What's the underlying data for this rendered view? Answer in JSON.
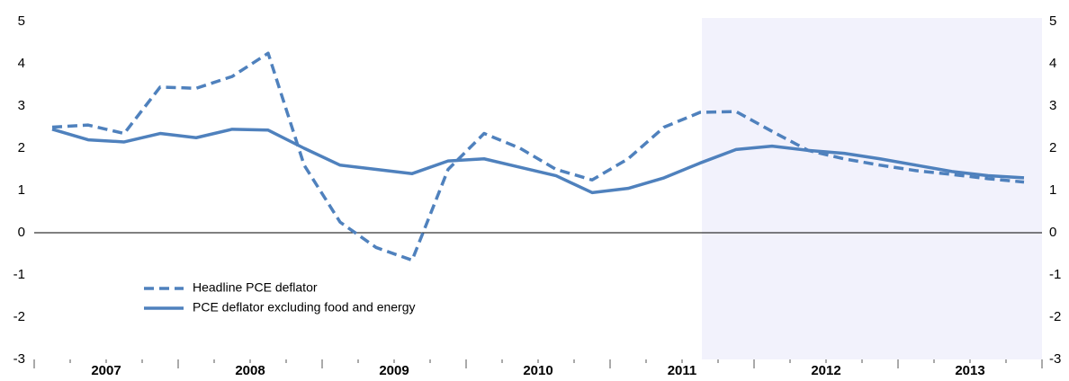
{
  "chart_data": {
    "type": "line",
    "categories": [
      null,
      null,
      null,
      null,
      null,
      null,
      null,
      null,
      null,
      null,
      null,
      null,
      null,
      null,
      null,
      null,
      null,
      null,
      null,
      null,
      null,
      null,
      null,
      null,
      null,
      null,
      null,
      null
    ],
    "year_labels": [
      "2007",
      "2008",
      "2009",
      "2010",
      "2011",
      "2012",
      "2013"
    ],
    "series": [
      {
        "name": "Headline PCE deflator",
        "color": "#4f81bd",
        "dash": true,
        "values": [
          2.5,
          2.55,
          2.35,
          3.45,
          3.42,
          3.7,
          4.25,
          1.6,
          0.25,
          -0.35,
          -0.65,
          1.5,
          2.35,
          2.0,
          1.5,
          1.25,
          1.75,
          2.5,
          2.85,
          2.87,
          2.4,
          1.95,
          1.75,
          1.6,
          1.47,
          1.38,
          1.28,
          1.2
        ]
      },
      {
        "name": "PCE deflator excluding food and energy",
        "color": "#4f81bd",
        "dash": false,
        "values": [
          2.45,
          2.2,
          2.15,
          2.35,
          2.25,
          2.45,
          2.43,
          2.0,
          1.6,
          1.5,
          1.4,
          1.7,
          1.75,
          1.55,
          1.35,
          0.95,
          1.05,
          1.3,
          1.65,
          1.97,
          2.05,
          1.95,
          1.88,
          1.75,
          1.6,
          1.45,
          1.35,
          1.3
        ]
      }
    ],
    "ylim": [
      -3,
      5
    ],
    "yticks": [
      -3,
      -2,
      -1,
      0,
      1,
      2,
      3,
      4,
      5
    ],
    "y2lim": [
      -3,
      5
    ],
    "y2ticks": [
      -3,
      -2,
      -1,
      0,
      1,
      2,
      3,
      4,
      5
    ],
    "shaded_from_category": 19,
    "shade_color": "#f2f2fc",
    "legend": "lower left"
  }
}
